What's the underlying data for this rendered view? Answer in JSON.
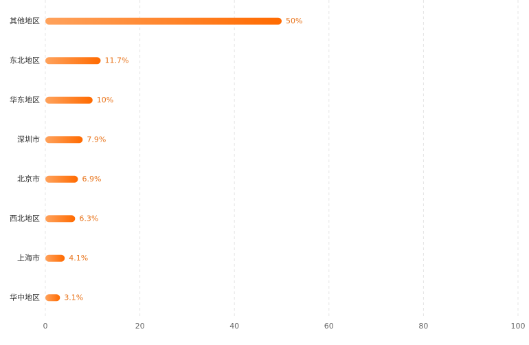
{
  "chart_data": {
    "type": "bar",
    "orientation": "horizontal",
    "categories": [
      "其他地区",
      "东北地区",
      "华东地区",
      "深圳市",
      "北京市",
      "西北地区",
      "上海市",
      "华中地区"
    ],
    "values": [
      50,
      11.7,
      10,
      7.9,
      6.9,
      6.3,
      4.1,
      3.1
    ],
    "value_labels": [
      "50%",
      "11.7%",
      "10%",
      "7.9%",
      "6.9%",
      "6.3%",
      "4.1%",
      "3.1%"
    ],
    "color": [
      "#ffa25c",
      "#ff6a00"
    ],
    "xlim": [
      0,
      100
    ],
    "xticks": [
      0,
      20,
      40,
      60,
      80,
      100
    ],
    "grid": true
  }
}
